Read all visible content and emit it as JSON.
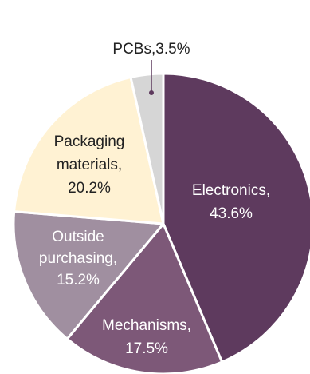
{
  "chart_data": {
    "type": "pie",
    "title": "",
    "slices": [
      {
        "label": "Electronics",
        "value": 43.6,
        "text": "43.6%",
        "color": "#5e3a5e",
        "label_color": "#ffffff"
      },
      {
        "label": "Mechanisms",
        "value": 17.5,
        "text": "17.5%",
        "color": "#7d5878",
        "label_color": "#ffffff"
      },
      {
        "label": "Outside purchasing",
        "value": 15.2,
        "text": "15.2%",
        "color": "#a08fa0",
        "label_color": "#ffffff"
      },
      {
        "label": "Packaging materials",
        "value": 20.2,
        "text": "20.2%",
        "color": "#fff2d3",
        "label_color": "#222222"
      },
      {
        "label": "PCBs",
        "value": 3.5,
        "text": "3.5%",
        "color": "#d6d6d6",
        "label_color": "#222222"
      }
    ],
    "legend": "none",
    "start_angle": "12 o'clock",
    "direction": "clockwise"
  }
}
